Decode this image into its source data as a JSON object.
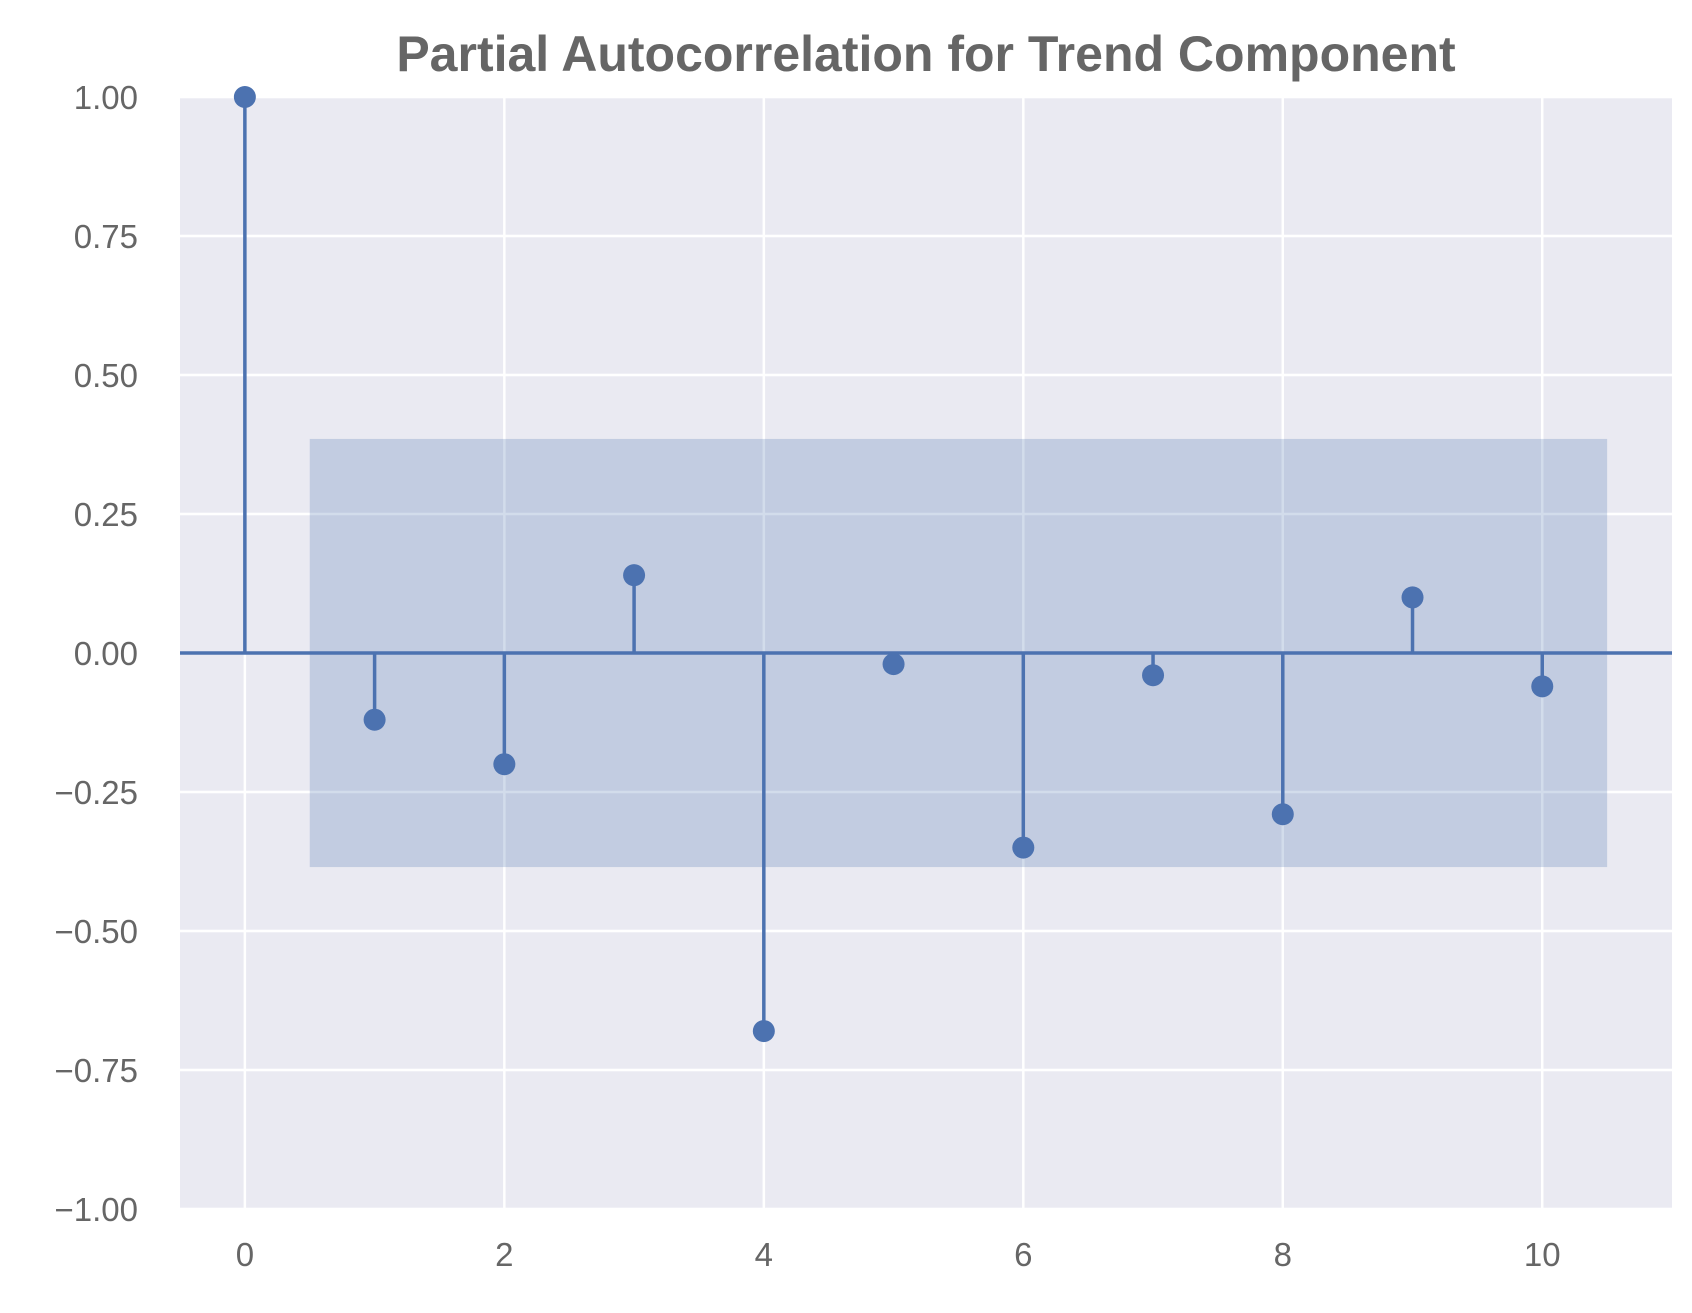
{
  "chart_data": {
    "type": "stem",
    "title": "Partial Autocorrelation for Trend Component",
    "xlabel": "",
    "ylabel": "",
    "x": [
      0,
      1,
      2,
      3,
      4,
      5,
      6,
      7,
      8,
      9,
      10
    ],
    "values": [
      1.0,
      -0.12,
      -0.2,
      0.14,
      -0.68,
      -0.02,
      -0.35,
      -0.04,
      -0.29,
      0.1,
      -0.06
    ],
    "confidence_interval": [
      -0.385,
      0.385
    ],
    "confidence_interval_x_range": [
      0.5,
      10.5
    ],
    "xlim": [
      -0.5,
      11
    ],
    "ylim": [
      -1.0,
      1.0
    ],
    "x_ticks": [
      0,
      2,
      4,
      6,
      8,
      10
    ],
    "x_tick_labels": [
      "0",
      "2",
      "4",
      "6",
      "8",
      "10"
    ],
    "y_ticks": [
      1.0,
      0.75,
      0.5,
      0.25,
      0.0,
      -0.25,
      -0.5,
      -0.75,
      -1.0
    ],
    "y_tick_labels": [
      "1.00",
      "0.75",
      "0.50",
      "0.25",
      "0.00",
      "−0.25",
      "−0.50",
      "−0.75",
      "−1.00"
    ],
    "grid": true,
    "colors": {
      "background": "#EAEAF2",
      "grid": "#FFFFFF",
      "series": "#4C72B0",
      "confidence_band": "#4C72B0",
      "text": "#666666"
    }
  }
}
